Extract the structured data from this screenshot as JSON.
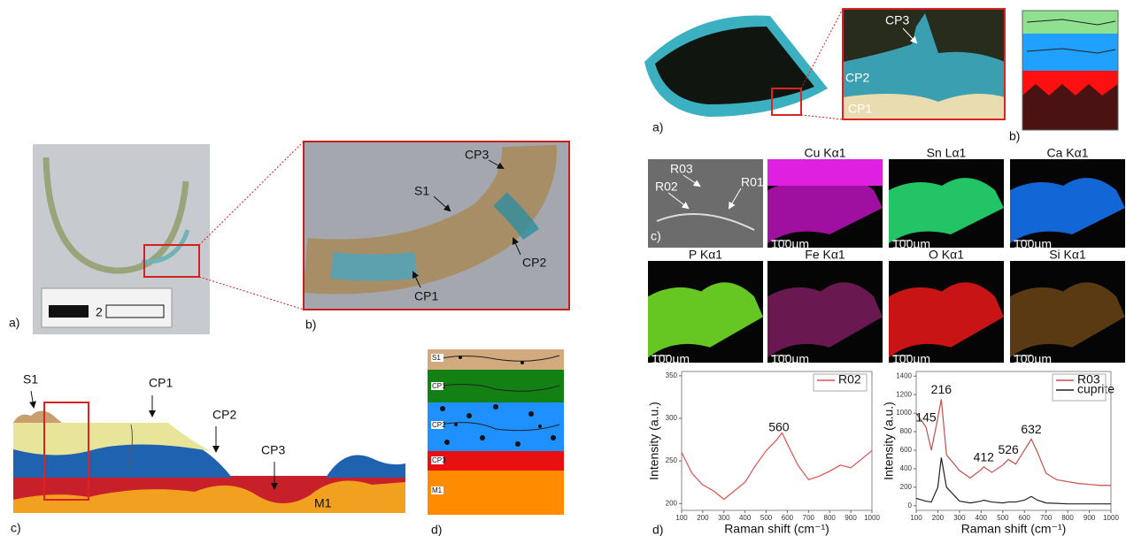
{
  "left": {
    "panel_a": {
      "label": "a)",
      "scale_label": "2"
    },
    "panel_b": {
      "label": "b)",
      "annotations": [
        "CP3",
        "S1",
        "CP2",
        "CP1"
      ]
    },
    "panel_c": {
      "label": "c)",
      "annotations": [
        "S1",
        "CP1",
        "CP2",
        "CP3",
        "M1"
      ]
    },
    "panel_d": {
      "label": "d)",
      "layers": [
        "S1",
        "CP1",
        "CP2",
        "CP3",
        "M1"
      ]
    }
  },
  "right": {
    "panel_a": {
      "label": "a)",
      "annotations": [
        "CP3",
        "CP2",
        "CP1"
      ]
    },
    "panel_b": {
      "label": "b)"
    },
    "panel_c": {
      "label": "c)",
      "sem_annotations": [
        "R03",
        "R02",
        "R01"
      ],
      "maps": [
        {
          "title": "Cu Kα1",
          "scale": "100µm"
        },
        {
          "title": "Sn Lα1",
          "scale": "100µm"
        },
        {
          "title": "Ca Kα1",
          "scale": "100µm"
        },
        {
          "title": "P Kα1",
          "scale": "100µm"
        },
        {
          "title": "Fe Kα1",
          "scale": "100µm"
        },
        {
          "title": "O Kα1",
          "scale": "100µm"
        },
        {
          "title": "Si Kα1",
          "scale": "100µm"
        }
      ]
    },
    "panel_d": {
      "label": "d)"
    }
  },
  "chart_data": [
    {
      "type": "line",
      "ylabel": "Intensity (a.u.)",
      "xlabel": "Raman shift (cm⁻¹)",
      "x": [
        100,
        150,
        200,
        250,
        300,
        350,
        400,
        450,
        500,
        550,
        575,
        600,
        650,
        700,
        750,
        800,
        850,
        900,
        950,
        1000
      ],
      "series": [
        {
          "name": "R02",
          "color": "#e05050",
          "values": [
            260,
            235,
            222,
            215,
            205,
            215,
            225,
            245,
            262,
            275,
            283,
            270,
            245,
            228,
            232,
            238,
            245,
            242,
            252,
            262
          ]
        }
      ],
      "xlim": [
        100,
        1000
      ],
      "xticks": [
        100,
        200,
        300,
        400,
        500,
        600,
        700,
        800,
        900,
        1000
      ],
      "ylim": [
        192,
        355
      ],
      "yticks": [
        200,
        250,
        300,
        350
      ],
      "peak_labels": [
        560
      ],
      "legend": "upper right"
    },
    {
      "type": "line",
      "ylabel": "Intensity (a.u.)",
      "xlabel": "Raman shift (cm⁻¹)",
      "x": [
        100,
        145,
        170,
        200,
        216,
        240,
        300,
        350,
        400,
        412,
        450,
        500,
        526,
        560,
        600,
        632,
        660,
        700,
        750,
        800,
        850,
        900,
        950,
        1000
      ],
      "series": [
        {
          "name": "R03",
          "color": "#c0504d",
          "values": [
            1000,
            850,
            600,
            950,
            1150,
            550,
            380,
            300,
            390,
            420,
            360,
            440,
            500,
            450,
            600,
            720,
            580,
            350,
            280,
            260,
            240,
            230,
            220,
            220
          ]
        },
        {
          "name": "cuprite",
          "color": "#222222",
          "values": [
            80,
            50,
            40,
            200,
            520,
            200,
            50,
            30,
            50,
            60,
            40,
            30,
            40,
            40,
            60,
            100,
            60,
            30,
            25,
            20,
            20,
            20,
            20,
            20
          ]
        }
      ],
      "xlim": [
        100,
        1000
      ],
      "xticks": [
        100,
        200,
        300,
        400,
        500,
        600,
        700,
        800,
        900,
        1000
      ],
      "ylim": [
        -50,
        1450
      ],
      "yticks": [
        0,
        200,
        400,
        600,
        800,
        1000,
        1200,
        1400
      ],
      "peak_labels": [
        145,
        216,
        412,
        526,
        632
      ],
      "legend": "upper right"
    }
  ]
}
